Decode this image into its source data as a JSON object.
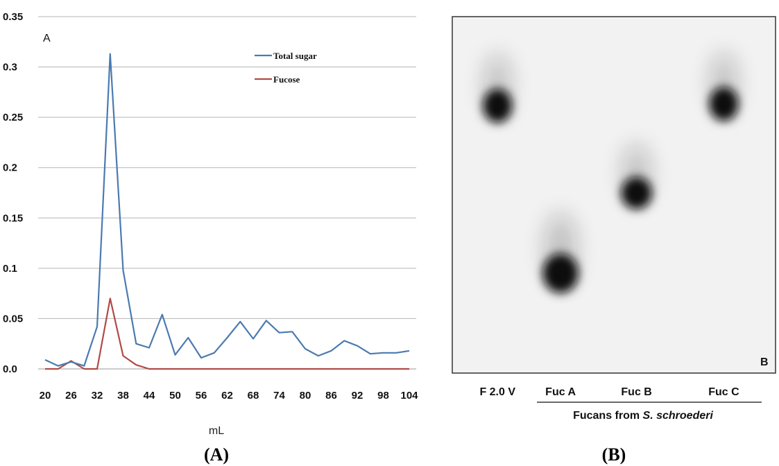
{
  "panel_a": {
    "panel_letter": "A",
    "x_unit": "mL",
    "caption": "(A)"
  },
  "panel_b": {
    "panel_letter": "B",
    "caption": "(B)",
    "lanes": [
      {
        "label": "F 2.0 V",
        "spot_x": 0.14,
        "spot_y": 0.25,
        "spot_rx": 0.09,
        "spot_ry": 0.095
      },
      {
        "label": "Fuc A",
        "spot_x": 0.335,
        "spot_y": 0.72,
        "spot_rx": 0.11,
        "spot_ry": 0.11
      },
      {
        "label": "Fuc B",
        "spot_x": 0.57,
        "spot_y": 0.495,
        "spot_rx": 0.095,
        "spot_ry": 0.09
      },
      {
        "label": "Fuc C",
        "spot_x": 0.84,
        "spot_y": 0.245,
        "spot_rx": 0.09,
        "spot_ry": 0.095
      }
    ],
    "group_caption_prefix": "Fucans from ",
    "group_caption_species": "S. schroederi",
    "colors": {
      "background": "#f2f2f2",
      "spot": "#0d0d0d"
    }
  },
  "chart_data": {
    "type": "line",
    "title": "",
    "xlabel": "mL",
    "ylabel": "",
    "ylim": [
      0,
      0.35
    ],
    "yticks": [
      0,
      0.05,
      0.1,
      0.15,
      0.2,
      0.25,
      0.3,
      0.35
    ],
    "ytick_labels": [
      "0.0",
      "0.05",
      "0.1",
      "0.15",
      "0.2",
      "0.25",
      "0.3",
      "0.35"
    ],
    "xticks": [
      "20",
      "26",
      "32",
      "38",
      "44",
      "50",
      "56",
      "62",
      "68",
      "74",
      "80",
      "86",
      "92",
      "98",
      "104"
    ],
    "x": [
      20,
      23,
      26,
      29,
      32,
      35,
      38,
      41,
      44,
      47,
      50,
      53,
      56,
      59,
      62,
      65,
      68,
      71,
      74,
      77,
      80,
      83,
      86,
      89,
      92,
      95,
      98,
      101,
      104
    ],
    "grid": true,
    "legend_position": "top-right",
    "series": [
      {
        "name": "Total sugar",
        "color": "#4a7ab0",
        "values": [
          0.009,
          0.003,
          0.007,
          0.003,
          0.042,
          0.313,
          0.098,
          0.025,
          0.021,
          0.054,
          0.014,
          0.031,
          0.011,
          0.016,
          0.031,
          0.047,
          0.03,
          0.048,
          0.036,
          0.037,
          0.02,
          0.013,
          0.018,
          0.028,
          0.023,
          0.015,
          0.016,
          0.016,
          0.018
        ]
      },
      {
        "name": "Fucose",
        "color": "#b04a45",
        "values": [
          0.0,
          0.0,
          0.008,
          0.0,
          0.0,
          0.07,
          0.013,
          0.004,
          0.0,
          0.0,
          0.0,
          0.0,
          0.0,
          0.0,
          0.0,
          0.0,
          0.0,
          0.0,
          0.0,
          0.0,
          0.0,
          0.0,
          0.0,
          0.0,
          0.0,
          0.0,
          0.0,
          0.0,
          0.0
        ]
      }
    ]
  }
}
